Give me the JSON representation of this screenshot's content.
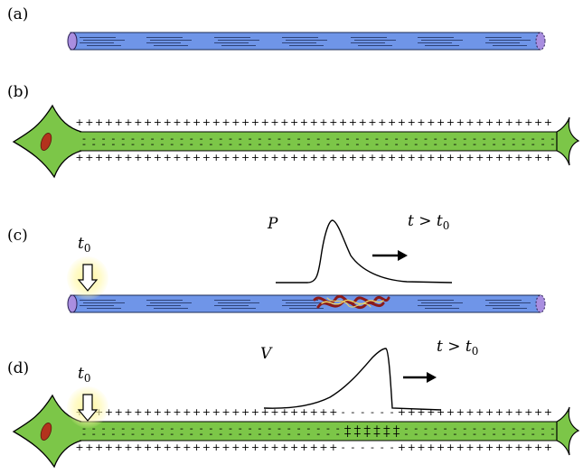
{
  "panels": {
    "a": {
      "label": "(a)"
    },
    "b": {
      "label": "(b)"
    },
    "c": {
      "label": "(c)",
      "t0_var": "t",
      "t0_sub": "0",
      "signal_label": "P",
      "time_label": "t > t",
      "time_sub": "0"
    },
    "d": {
      "label": "(d)",
      "t0_var": "t",
      "t0_sub": "0",
      "signal_label": "V",
      "time_label": "t > t",
      "time_sub": "0"
    }
  },
  "colors": {
    "tube": "#6f95e8",
    "tube_end": "#a98ee0",
    "neuron": "#7cc648",
    "nucleus": "#b3331d",
    "highlight": "#fff399",
    "excitation": "#8b1a1a",
    "excitation_core": "#e9d46a"
  },
  "icons": [
    "down-arrow-icon",
    "right-arrow-icon",
    "neuron-cell-body",
    "axon-terminal"
  ]
}
